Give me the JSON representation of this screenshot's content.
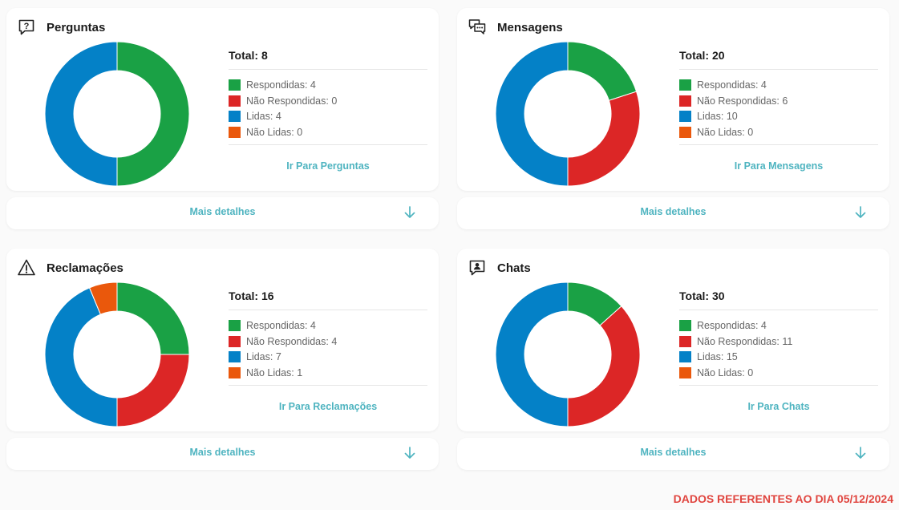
{
  "colors": {
    "respondidas": "#1aa145",
    "nao_respondidas": "#dc2626",
    "lidas": "#0481c7",
    "nao_lidas": "#ea580c",
    "link": "#4fb4c0",
    "footer": "#e0453f"
  },
  "cards": [
    {
      "title": "Perguntas",
      "icon": "question-bubble-icon",
      "total_label": "Total: 8",
      "legend": [
        {
          "label": "Respondidas: 4"
        },
        {
          "label": "Não Respondidas: 0"
        },
        {
          "label": "Lidas: 4"
        },
        {
          "label": "Não Lidas: 0"
        }
      ],
      "link_label": "Ir Para Perguntas",
      "details_label": "Mais detalhes"
    },
    {
      "title": "Mensagens",
      "icon": "message-bubbles-icon",
      "total_label": "Total: 20",
      "legend": [
        {
          "label": "Respondidas: 4"
        },
        {
          "label": "Não Respondidas: 6"
        },
        {
          "label": "Lidas: 10"
        },
        {
          "label": "Não Lidas: 0"
        }
      ],
      "link_label": "Ir Para Mensagens",
      "details_label": "Mais detalhes"
    },
    {
      "title": "Reclamações",
      "icon": "warning-triangle-icon",
      "total_label": "Total: 16",
      "legend": [
        {
          "label": "Respondidas: 4"
        },
        {
          "label": "Não Respondidas: 4"
        },
        {
          "label": "Lidas: 7"
        },
        {
          "label": "Não Lidas: 1"
        }
      ],
      "link_label": "Ir Para Reclamações",
      "details_label": "Mais detalhes"
    },
    {
      "title": "Chats",
      "icon": "chat-user-icon",
      "total_label": "Total: 30",
      "legend": [
        {
          "label": "Respondidas: 4"
        },
        {
          "label": "Não Respondidas: 11"
        },
        {
          "label": "Lidas: 15"
        },
        {
          "label": "Não Lidas: 0"
        }
      ],
      "link_label": "Ir Para Chats",
      "details_label": "Mais detalhes"
    }
  ],
  "chart_data": [
    {
      "type": "pie",
      "title": "Perguntas",
      "categories": [
        "Respondidas",
        "Não Respondidas",
        "Lidas",
        "Não Lidas"
      ],
      "values": [
        4,
        0,
        4,
        0
      ]
    },
    {
      "type": "pie",
      "title": "Mensagens",
      "categories": [
        "Respondidas",
        "Não Respondidas",
        "Lidas",
        "Não Lidas"
      ],
      "values": [
        4,
        6,
        10,
        0
      ]
    },
    {
      "type": "pie",
      "title": "Reclamações",
      "categories": [
        "Respondidas",
        "Não Respondidas",
        "Lidas",
        "Não Lidas"
      ],
      "values": [
        4,
        4,
        7,
        1
      ]
    },
    {
      "type": "pie",
      "title": "Chats",
      "categories": [
        "Respondidas",
        "Não Respondidas",
        "Lidas",
        "Não Lidas"
      ],
      "values": [
        4,
        11,
        15,
        0
      ]
    }
  ],
  "footer_note": "DADOS REFERENTES AO DIA 05/12/2024"
}
